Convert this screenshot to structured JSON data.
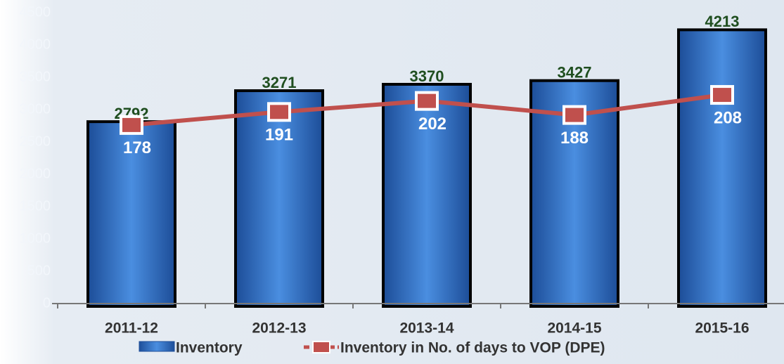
{
  "chart_data": {
    "type": "bar_line",
    "categories": [
      "2011-12",
      "2012-13",
      "2013-14",
      "2014-15",
      "2015-16"
    ],
    "series": [
      {
        "name": "Inventory",
        "type": "bar",
        "color": "#2f6fc4",
        "values": [
          2792,
          3271,
          3370,
          3427,
          4213
        ]
      },
      {
        "name": "Inventory in No. of days to VOP (DPE)",
        "type": "line",
        "axis": "y2",
        "color": "#c0504d",
        "values": [
          178,
          191,
          202,
          188,
          208
        ]
      }
    ],
    "ylim": [
      0,
      4500
    ],
    "yticks": [
      0,
      500,
      1000,
      1500,
      2000,
      2500,
      3000,
      3500,
      4000,
      4500
    ],
    "y2lim": [
      0,
      290
    ],
    "legend": "bottom"
  }
}
